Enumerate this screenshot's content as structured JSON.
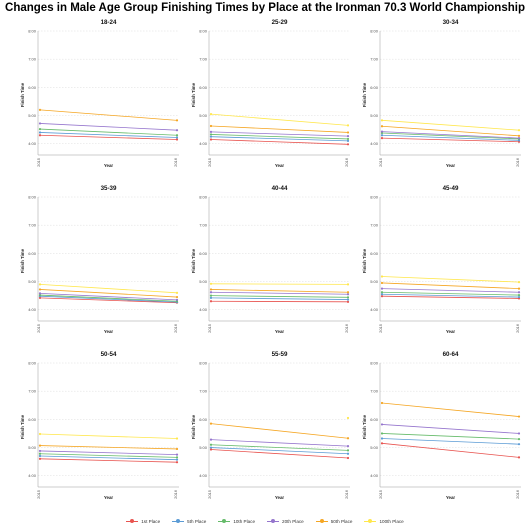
{
  "title": "Changes in Male Age Group Finishing Times by Place at the Ironman 70.3 World Championship",
  "colors": {
    "1st Place": "#e8534f",
    "5th Place": "#5b9bd5",
    "10th Place": "#66bb6a",
    "20th Place": "#9575cd",
    "50th Place": "#f5a623",
    "100th Place": "#ffe74c"
  },
  "legend": [
    "1st Place",
    "5th Place",
    "10th Place",
    "20th Place",
    "50th Place",
    "100th Place"
  ],
  "chart_data": [
    {
      "type": "line",
      "title": "18-24",
      "xlabel": "Year",
      "ylabel": "Finish Time",
      "x": [
        "2015",
        "2016"
      ],
      "yticks": [
        "4:00",
        "5:00",
        "6:00",
        "7:00",
        "8:00"
      ],
      "ylim": [
        3.6,
        8.0
      ],
      "grid": true,
      "series": [
        {
          "name": "1st Place",
          "values": [
            4.3,
            4.15
          ]
        },
        {
          "name": "5th Place",
          "values": [
            4.4,
            4.22
          ]
        },
        {
          "name": "10th Place",
          "values": [
            4.52,
            4.3
          ]
        },
        {
          "name": "20th Place",
          "values": [
            4.72,
            4.48
          ]
        },
        {
          "name": "50th Place",
          "values": [
            5.2,
            4.83
          ]
        }
      ]
    },
    {
      "type": "line",
      "title": "25-29",
      "xlabel": "Year",
      "ylabel": "Finish Time",
      "x": [
        "2015",
        "2016"
      ],
      "yticks": [
        "4:00",
        "5:00",
        "6:00",
        "7:00",
        "8:00"
      ],
      "ylim": [
        3.6,
        8.0
      ],
      "grid": true,
      "series": [
        {
          "name": "1st Place",
          "values": [
            4.15,
            3.98
          ]
        },
        {
          "name": "5th Place",
          "values": [
            4.25,
            4.1
          ]
        },
        {
          "name": "10th Place",
          "values": [
            4.33,
            4.17
          ]
        },
        {
          "name": "20th Place",
          "values": [
            4.42,
            4.27
          ]
        },
        {
          "name": "50th Place",
          "values": [
            4.63,
            4.4
          ]
        },
        {
          "name": "100th Place",
          "values": [
            5.05,
            4.65
          ]
        }
      ]
    },
    {
      "type": "line",
      "title": "30-34",
      "xlabel": "Year",
      "ylabel": "Finish Time",
      "x": [
        "2015",
        "2016"
      ],
      "yticks": [
        "4:00",
        "5:00",
        "6:00",
        "7:00",
        "8:00"
      ],
      "ylim": [
        3.6,
        8.0
      ],
      "grid": true,
      "series": [
        {
          "name": "1st Place",
          "values": [
            4.2,
            4.07
          ]
        },
        {
          "name": "5th Place",
          "values": [
            4.3,
            4.12
          ]
        },
        {
          "name": "10th Place",
          "values": [
            4.38,
            4.17
          ]
        },
        {
          "name": "20th Place",
          "values": [
            4.43,
            4.2
          ]
        },
        {
          "name": "50th Place",
          "values": [
            4.62,
            4.28
          ]
        },
        {
          "name": "100th Place",
          "values": [
            4.83,
            4.48
          ]
        }
      ]
    },
    {
      "type": "line",
      "title": "35-39",
      "xlabel": "Year",
      "ylabel": "Finish Time",
      "x": [
        "2015",
        "2016"
      ],
      "yticks": [
        "4:00",
        "5:00",
        "6:00",
        "7:00",
        "8:00"
      ],
      "ylim": [
        3.6,
        8.0
      ],
      "grid": true,
      "series": [
        {
          "name": "1st Place",
          "values": [
            4.42,
            4.25
          ]
        },
        {
          "name": "5th Place",
          "values": [
            4.48,
            4.27
          ]
        },
        {
          "name": "10th Place",
          "values": [
            4.52,
            4.3
          ]
        },
        {
          "name": "20th Place",
          "values": [
            4.58,
            4.35
          ]
        },
        {
          "name": "50th Place",
          "values": [
            4.72,
            4.45
          ]
        },
        {
          "name": "100th Place",
          "values": [
            4.9,
            4.6
          ]
        }
      ]
    },
    {
      "type": "line",
      "title": "40-44",
      "xlabel": "Year",
      "ylabel": "Finish Time",
      "x": [
        "2015",
        "2016"
      ],
      "yticks": [
        "4:00",
        "5:00",
        "6:00",
        "7:00",
        "8:00"
      ],
      "ylim": [
        3.6,
        8.0
      ],
      "grid": true,
      "series": [
        {
          "name": "1st Place",
          "values": [
            4.3,
            4.28
          ]
        },
        {
          "name": "5th Place",
          "values": [
            4.42,
            4.36
          ]
        },
        {
          "name": "10th Place",
          "values": [
            4.5,
            4.44
          ]
        },
        {
          "name": "20th Place",
          "values": [
            4.62,
            4.55
          ]
        },
        {
          "name": "50th Place",
          "values": [
            4.72,
            4.62
          ]
        },
        {
          "name": "100th Place",
          "values": [
            4.92,
            4.9
          ]
        }
      ]
    },
    {
      "type": "line",
      "title": "45-49",
      "xlabel": "Year",
      "ylabel": "Finish Time",
      "x": [
        "2015",
        "2016"
      ],
      "yticks": [
        "4:00",
        "5:00",
        "6:00",
        "7:00",
        "8:00"
      ],
      "ylim": [
        3.6,
        8.0
      ],
      "grid": true,
      "series": [
        {
          "name": "1st Place",
          "values": [
            4.48,
            4.4
          ]
        },
        {
          "name": "5th Place",
          "values": [
            4.55,
            4.45
          ]
        },
        {
          "name": "10th Place",
          "values": [
            4.62,
            4.52
          ]
        },
        {
          "name": "20th Place",
          "values": [
            4.75,
            4.62
          ]
        },
        {
          "name": "50th Place",
          "values": [
            4.95,
            4.75
          ]
        },
        {
          "name": "100th Place",
          "values": [
            5.18,
            4.98
          ]
        }
      ]
    },
    {
      "type": "line",
      "title": "50-54",
      "xlabel": "Year",
      "ylabel": "Finish Time",
      "x": [
        "2015",
        "2016"
      ],
      "yticks": [
        "4:00",
        "5:00",
        "6:00",
        "7:00",
        "8:00"
      ],
      "ylim": [
        3.6,
        8.0
      ],
      "grid": true,
      "series": [
        {
          "name": "1st Place",
          "values": [
            4.6,
            4.48
          ]
        },
        {
          "name": "5th Place",
          "values": [
            4.7,
            4.57
          ]
        },
        {
          "name": "10th Place",
          "values": [
            4.78,
            4.65
          ]
        },
        {
          "name": "20th Place",
          "values": [
            4.88,
            4.75
          ]
        },
        {
          "name": "50th Place",
          "values": [
            5.07,
            4.95
          ]
        },
        {
          "name": "100th Place",
          "values": [
            5.48,
            5.32
          ]
        }
      ]
    },
    {
      "type": "line",
      "title": "55-59",
      "xlabel": "Year",
      "ylabel": "Finish Time",
      "x": [
        "2015",
        "2016"
      ],
      "yticks": [
        "4:00",
        "5:00",
        "6:00",
        "7:00",
        "8:00"
      ],
      "ylim": [
        3.6,
        8.0
      ],
      "grid": true,
      "series": [
        {
          "name": "1st Place",
          "values": [
            4.93,
            4.63
          ]
        },
        {
          "name": "5th Place",
          "values": [
            5.0,
            4.78
          ]
        },
        {
          "name": "10th Place",
          "values": [
            5.1,
            4.9
          ]
        },
        {
          "name": "20th Place",
          "values": [
            5.28,
            5.05
          ]
        },
        {
          "name": "50th Place",
          "values": [
            5.85,
            5.33
          ]
        },
        {
          "name": "100th Place",
          "values": [
            null,
            6.05
          ]
        }
      ]
    },
    {
      "type": "line",
      "title": "60-64",
      "xlabel": "Year",
      "ylabel": "Finish Time",
      "x": [
        "2015",
        "2016"
      ],
      "yticks": [
        "4:00",
        "5:00",
        "6:00",
        "7:00",
        "8:00"
      ],
      "ylim": [
        3.6,
        8.0
      ],
      "grid": true,
      "series": [
        {
          "name": "1st Place",
          "values": [
            5.15,
            4.65
          ]
        },
        {
          "name": "5th Place",
          "values": [
            5.32,
            5.12
          ]
        },
        {
          "name": "10th Place",
          "values": [
            5.5,
            5.3
          ]
        },
        {
          "name": "20th Place",
          "values": [
            5.82,
            5.5
          ]
        },
        {
          "name": "50th Place",
          "values": [
            6.58,
            6.1
          ]
        }
      ]
    }
  ]
}
